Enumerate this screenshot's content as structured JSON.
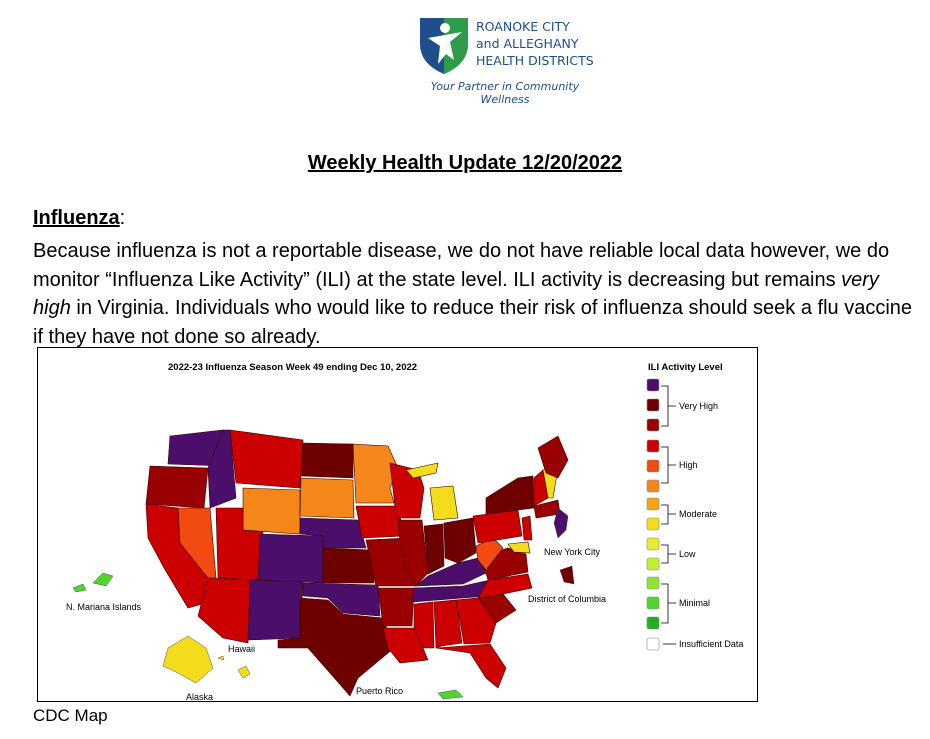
{
  "header": {
    "org_line1": "ROANOKE CITY",
    "org_line2": "and ALLEGHANY",
    "org_line3": "HEALTH DISTRICTS",
    "tagline": "Your Partner in Community Wellness",
    "logo_icon": "person-shield-logo"
  },
  "document": {
    "title": "Weekly Health Update 12/20/2022",
    "section_heading": "Influenza",
    "section_colon": ":",
    "para_part1": "Because influenza is not a reportable disease, we do not have reliable local data however, we do monitor “Influenza Like Activity” (ILI) at the state level. ILI activity is decreasing but remains ",
    "para_emphasis": "very high",
    "para_part2": " in Virginia. Individuals who would like to reduce their risk of influenza should seek a flu vaccine if they have not done so already.",
    "caption": "CDC Map"
  },
  "map": {
    "title": "2022-23 Influenza Season Week 49 ending Dec 10, 2022",
    "legend_title": "ILI Activity Level",
    "legend_levels": [
      {
        "color": "#4b0f6b"
      },
      {
        "color": "#6e0000"
      },
      {
        "color": "#990000"
      },
      {
        "color": "#cc0000"
      },
      {
        "color": "#f24b12"
      },
      {
        "color": "#f5861a"
      },
      {
        "color": "#f7a31a"
      },
      {
        "color": "#f2dc1c"
      },
      {
        "color": "#e6ec30"
      },
      {
        "color": "#bff032"
      },
      {
        "color": "#8fe632"
      },
      {
        "color": "#4fd62e"
      },
      {
        "color": "#21b020"
      },
      {
        "color": "#ffffff"
      }
    ],
    "group_very_high": "Very High",
    "group_high": "High",
    "group_moderate": "Moderate",
    "group_low": "Low",
    "group_minimal": "Minimal",
    "insufficient": "Insufficient Data",
    "label_nyc": "New York City",
    "label_dc": "District of Columbia",
    "label_nmi": "N. Mariana Islands",
    "label_hawaii": "Hawaii",
    "label_alaska": "Alaska",
    "label_pr": "Puerto Rico"
  }
}
